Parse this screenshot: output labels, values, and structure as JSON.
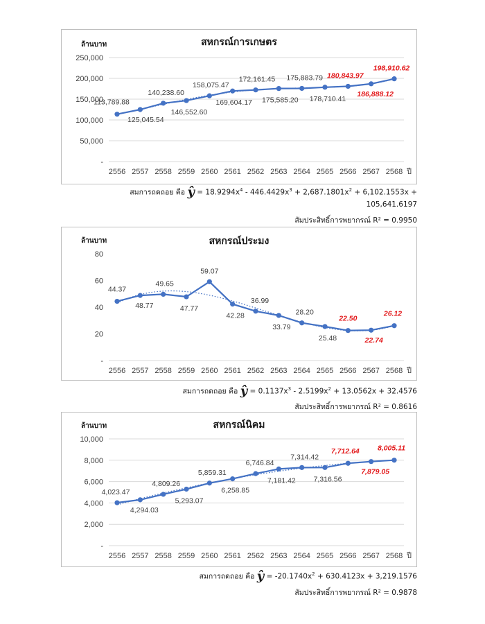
{
  "chart_data": [
    {
      "type": "line",
      "title": "สหกรณ์การเกษตร",
      "ylabel": "ล้านบาท",
      "xlabel": "ปี",
      "categories": [
        "2556",
        "2557",
        "2558",
        "2559",
        "2560",
        "2561",
        "2562",
        "2563",
        "2564",
        "2565",
        "2566",
        "2567",
        "2568"
      ],
      "values": [
        113789.88,
        125045.54,
        140238.6,
        146552.6,
        158075.47,
        169604.17,
        172161.45,
        175585.2,
        175883.79,
        178710.41,
        180843.97,
        186888.12,
        198910.62
      ],
      "data_labels": [
        "113,789.88",
        "125,045.54",
        "140,238.60",
        "146,552.60",
        "158,075.47",
        "169,604.17",
        "172,161.45",
        "175,585.20",
        "175,883.79",
        "178,710.41",
        "180,843.97",
        "186,888.12",
        "198,910.62"
      ],
      "forecast_from_index": 10,
      "ylim": [
        0,
        250000
      ],
      "yticks": [
        "-",
        "50,000",
        "100,000",
        "150,000",
        "200,000",
        "250,000"
      ],
      "trendline": true,
      "grid": true
    },
    {
      "type": "line",
      "title": "สหกรณ์ประมง",
      "ylabel": "ล้านบาท",
      "xlabel": "ปี",
      "categories": [
        "2556",
        "2557",
        "2558",
        "2559",
        "2560",
        "2561",
        "2562",
        "2563",
        "2564",
        "2565",
        "2566",
        "2567",
        "2568"
      ],
      "values": [
        44.37,
        48.77,
        49.65,
        47.77,
        59.07,
        42.28,
        36.99,
        33.79,
        28.2,
        25.48,
        22.5,
        22.74,
        26.12
      ],
      "data_labels": [
        "44.37",
        "48.77",
        "49.65",
        "47.77",
        "59.07",
        "42.28",
        "36.99",
        "33.79",
        "28.20",
        "25.48",
        "22.50",
        "22.74",
        "26.12"
      ],
      "forecast_from_index": 10,
      "ylim": [
        0,
        80
      ],
      "yticks": [
        "-",
        "20",
        "40",
        "60",
        "80"
      ],
      "trendline": true,
      "grid": false
    },
    {
      "type": "line",
      "title": "สหกรณ์นิคม",
      "ylabel": "ล้านบาท",
      "xlabel": "ปี",
      "categories": [
        "2556",
        "2557",
        "2558",
        "2559",
        "2560",
        "2561",
        "2562",
        "2563",
        "2564",
        "2565",
        "2566",
        "2567",
        "2568"
      ],
      "values": [
        4023.47,
        4294.03,
        4809.26,
        5293.07,
        5859.31,
        6258.85,
        6746.84,
        7181.42,
        7314.42,
        7316.56,
        7712.64,
        7879.05,
        8005.11
      ],
      "data_labels": [
        "4,023.47",
        "4,294.03",
        "4,809.26",
        "5,293.07",
        "5,859.31",
        "6,258.85",
        "6,746.84",
        "7,181.42",
        "7,314.42",
        "7,316.56",
        "7,712.64",
        "7,879.05",
        "8,005.11"
      ],
      "forecast_from_index": 10,
      "ylim": [
        0,
        10000
      ],
      "yticks": [
        "-",
        "2,000",
        "4,000",
        "6,000",
        "8,000",
        "10,000"
      ],
      "trendline": true,
      "grid": true
    }
  ],
  "equations": [
    {
      "line1": "สมการถดถอย คือ ŷ = 18.9294x⁴ - 446.4429x³ + 2,687.1801x² + 6,102.1553x +",
      "line2": "105,641.6197",
      "r2": "สัมประสิทธิ์การพยากรณ์ R² = 0.9950"
    },
    {
      "line1": "สมการถดถอย คือ ŷ = 0.1137x³ - 2.5199x² + 13.0562x + 32.4576",
      "r2": "สัมประสิทธิ์การพยากรณ์ R² = 0.8616"
    },
    {
      "line1": "สมการถดถอย คือ ŷ = -20.1740x² + 630.4123x + 3,219.1576",
      "r2": "สัมประสิทธิ์การพยากรณ์ R² = 0.9878"
    }
  ],
  "colors": {
    "line": "#4472c4",
    "forecast_label": "#e31a1c",
    "label": "#404040",
    "grid": "#d9d9d9"
  }
}
